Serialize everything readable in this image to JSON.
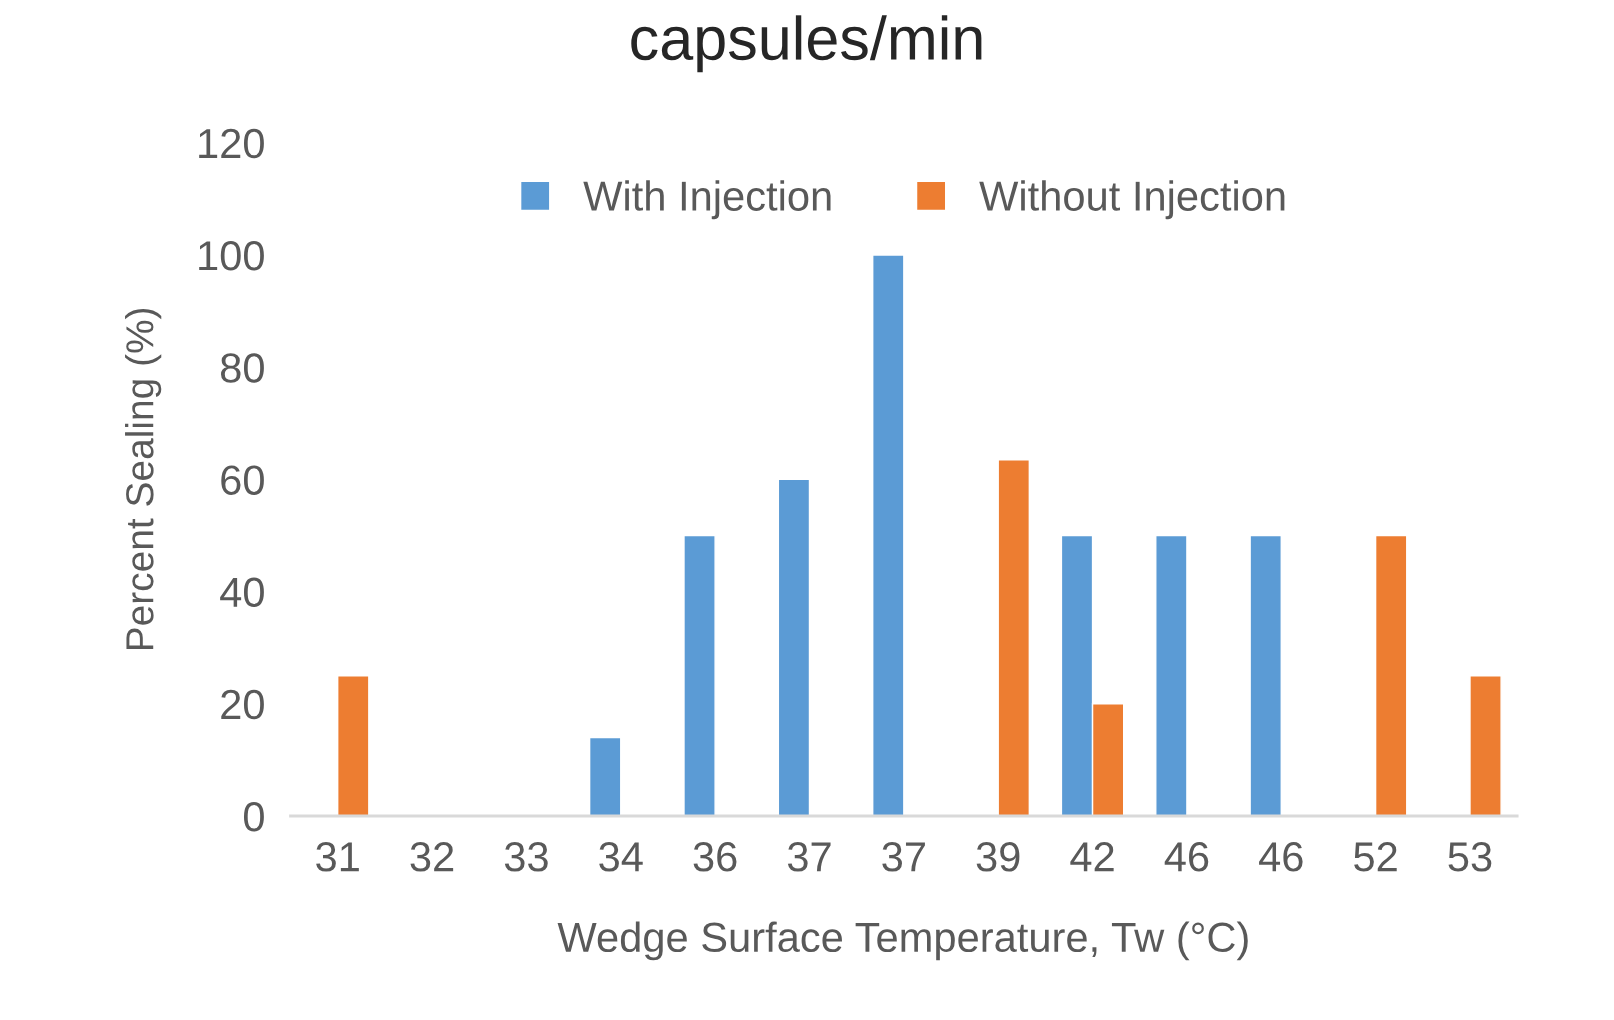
{
  "chart_data": {
    "type": "bar",
    "title": "capsules/min",
    "xlabel": "Wedge Surface Temperature, Tw (°C)",
    "ylabel": "Percent Sealing (%)",
    "categories": [
      "31",
      "32",
      "33",
      "34",
      "36",
      "37",
      "37",
      "39",
      "42",
      "46",
      "46",
      "52",
      "53"
    ],
    "series": [
      {
        "name": "With Injection",
        "color": "#5b9bd5",
        "values": [
          null,
          null,
          null,
          14,
          50,
          60,
          100,
          null,
          50,
          50,
          50,
          null,
          null
        ]
      },
      {
        "name": "Without Injection",
        "color": "#ed7d31",
        "values": [
          25,
          null,
          null,
          null,
          null,
          null,
          null,
          63.5,
          20,
          null,
          null,
          50,
          25
        ]
      }
    ],
    "ylim": [
      0,
      120
    ],
    "yticks": [
      0,
      20,
      40,
      60,
      80,
      100,
      120
    ],
    "grid": false,
    "legend": "top"
  }
}
